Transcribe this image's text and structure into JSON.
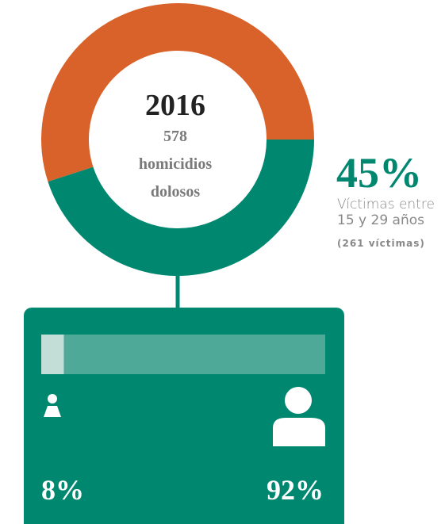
{
  "chart_data": [
    {
      "type": "donut",
      "title": "2016",
      "center_text": [
        578,
        "homicidios",
        "dolosos"
      ],
      "values": [
        45,
        55
      ],
      "value_labels": [
        "45%",
        null
      ],
      "colors": [
        "#00876f",
        "#d9622b"
      ],
      "annotation": [
        "Víctimas entre",
        "15 y 29 años",
        "(261 víctimas)"
      ]
    },
    {
      "type": "stacked-bar",
      "values": [
        8,
        92
      ],
      "value_labels": [
        "8%",
        "92%"
      ],
      "colors": [
        "#c3ddd7",
        "#4fa999"
      ]
    }
  ]
}
